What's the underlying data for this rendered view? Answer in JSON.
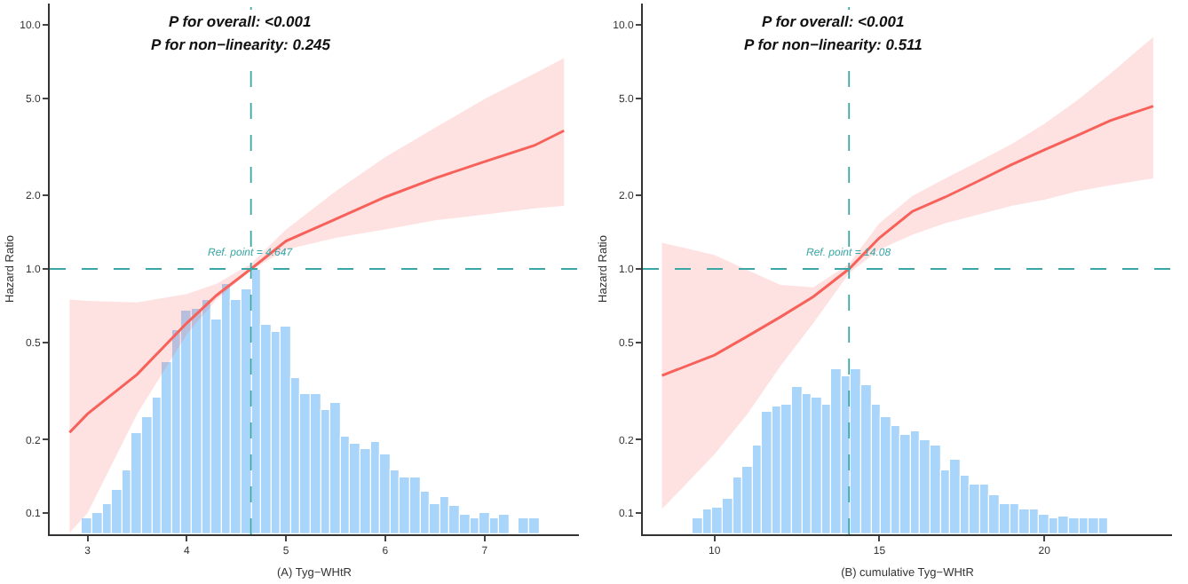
{
  "chart_data": [
    {
      "type": "line",
      "xlabel": "(A) Tyg−WHtR",
      "ylabel": "Hazard Ratio",
      "log": "y",
      "grid": false,
      "marker": "none",
      "line_style": "solid",
      "annotations": [
        "P for overall: <0.001",
        "P for non−linearity: 0.245"
      ],
      "xlim": [
        2.62,
        7.95
      ],
      "xticks": [
        3,
        4,
        5,
        6,
        7
      ],
      "ylim": [
        0.082,
        12.2
      ],
      "yticks": [
        0.1,
        0.2,
        0.5,
        {
          "value": 1,
          "label": "1.0"
        },
        {
          "value": 2,
          "label": "2.0"
        },
        {
          "value": 5,
          "label": "5.0"
        },
        {
          "value": 10,
          "label": "10.0"
        }
      ],
      "ref_lines": [
        {
          "axis": "x",
          "value": 4.647,
          "label": "Ref. point = 4.647",
          "color": "#3aa6a6",
          "line_style": "dashed"
        },
        {
          "axis": "y",
          "value": 1,
          "color": "#3aa6a6",
          "line_style": "dashed"
        }
      ],
      "series": [
        {
          "type": "histogram",
          "color": "#a9d5fb",
          "bins": [
            2.95,
            3.05,
            3.15,
            3.25,
            3.35,
            3.45,
            3.55,
            3.65,
            3.75,
            3.85,
            3.95,
            4.05,
            4.15,
            4.25,
            4.35,
            4.45,
            4.55,
            4.65,
            4.75,
            4.85,
            4.95,
            5.05,
            5.15,
            5.25,
            5.35,
            5.45,
            5.55,
            5.65,
            5.75,
            5.85,
            5.95,
            6.05,
            6.15,
            6.25,
            6.35,
            6.45,
            6.55,
            6.65,
            6.75,
            6.85,
            6.95,
            7.05,
            7.15,
            7.25,
            7.35,
            7.45,
            7.55
          ],
          "values": [
            0.096,
            0.1,
            0.109,
            0.125,
            0.151,
            0.213,
            0.249,
            0.298,
            0.415,
            0.563,
            0.672,
            0.691,
            0.742,
            0.625,
            0.862,
            0.742,
            0.824,
            1.0,
            0.592,
            0.548,
            0.576,
            0.356,
            0.305,
            0.307,
            0.266,
            0.282,
            0.205,
            0.194,
            0.184,
            0.196,
            0.174,
            0.151,
            0.139,
            0.139,
            0.123,
            0.109,
            0.117,
            0.107,
            0.099,
            0.096,
            0.1,
            0.096,
            0.098,
            null,
            0.096,
            0.096
          ]
        },
        {
          "type": "line",
          "color": "#f8605a",
          "x": [
            2.82,
            3.0,
            3.5,
            4.0,
            4.3,
            4.647,
            5.0,
            5.5,
            6.0,
            6.5,
            7.0,
            7.5,
            7.8
          ],
          "values": [
            0.214,
            0.255,
            0.37,
            0.6,
            0.78,
            1.0,
            1.3,
            1.6,
            1.97,
            2.35,
            2.75,
            3.2,
            3.68
          ],
          "lower": [
            0.083,
            0.1,
            0.255,
            0.54,
            0.75,
            0.99,
            1.2,
            1.34,
            1.45,
            1.58,
            1.67,
            1.77,
            1.81
          ],
          "upper": [
            0.75,
            0.74,
            0.73,
            0.79,
            0.87,
            1.05,
            1.45,
            2.08,
            2.87,
            3.78,
            4.96,
            6.3,
            7.3
          ]
        }
      ]
    },
    {
      "type": "line",
      "xlabel": "(B) cumulative Tyg−WHtR",
      "ylabel": "Hazard Ratio",
      "log": "y",
      "grid": false,
      "marker": "none",
      "line_style": "solid",
      "annotations": [
        "P for overall: <0.001",
        "P for non−linearity: 0.511"
      ],
      "xlim": [
        7.83,
        23.87
      ],
      "xticks": [
        10,
        15,
        20
      ],
      "ylim": [
        0.082,
        12.2
      ],
      "yticks": [
        0.1,
        0.2,
        0.5,
        {
          "value": 1,
          "label": "1.0"
        },
        {
          "value": 2,
          "label": "2.0"
        },
        {
          "value": 5,
          "label": "5.0"
        },
        {
          "value": 10,
          "label": "10.0"
        }
      ],
      "ref_lines": [
        {
          "axis": "x",
          "value": 14.08,
          "label": "Ref. point = 14.08",
          "color": "#3aa6a6",
          "line_style": "dashed"
        },
        {
          "axis": "y",
          "value": 1,
          "color": "#3aa6a6",
          "line_style": "dashed"
        }
      ],
      "series": [
        {
          "type": "histogram",
          "color": "#a9d5fb",
          "bins": [
            9.35,
            9.65,
            9.95,
            10.25,
            10.55,
            10.85,
            11.15,
            11.45,
            11.75,
            12.05,
            12.35,
            12.65,
            12.95,
            13.25,
            13.55,
            13.85,
            14.15,
            14.45,
            14.75,
            15.05,
            15.35,
            15.65,
            15.95,
            16.25,
            16.55,
            16.85,
            17.15,
            17.45,
            17.75,
            18.05,
            18.35,
            18.65,
            18.95,
            19.25,
            19.55,
            19.85,
            20.15,
            20.45,
            20.75,
            21.05,
            21.35,
            21.65,
            21.95
          ],
          "values": [
            0.095,
            0.103,
            0.106,
            0.115,
            0.139,
            0.155,
            0.189,
            0.26,
            0.273,
            0.276,
            0.328,
            0.31,
            0.298,
            0.278,
            0.387,
            0.362,
            0.387,
            0.333,
            0.278,
            0.249,
            0.229,
            0.211,
            0.216,
            0.2,
            0.189,
            0.151,
            0.166,
            0.143,
            0.13,
            0.13,
            0.119,
            0.109,
            0.109,
            0.104,
            0.103,
            0.098,
            0.096,
            0.097,
            0.095,
            0.096,
            0.095,
            0.095
          ]
        },
        {
          "type": "line",
          "color": "#f8605a",
          "x": [
            8.41,
            10,
            11,
            12,
            13,
            14.08,
            15,
            16,
            17,
            18,
            19,
            20,
            21,
            22,
            23.3
          ],
          "values": [
            0.366,
            0.444,
            0.53,
            0.636,
            0.77,
            1.0,
            1.34,
            1.72,
            1.97,
            2.29,
            2.67,
            3.07,
            3.52,
            4.05,
            4.64
          ],
          "lower": [
            0.104,
            0.174,
            0.255,
            0.4,
            0.6,
            0.96,
            1.2,
            1.38,
            1.54,
            1.67,
            1.81,
            1.92,
            2.08,
            2.2,
            2.35
          ],
          "upper": [
            1.28,
            1.14,
            0.99,
            0.86,
            0.84,
            1.05,
            1.54,
            1.99,
            2.35,
            2.75,
            3.24,
            3.93,
            4.9,
            6.3,
            8.9
          ]
        }
      ]
    }
  ]
}
